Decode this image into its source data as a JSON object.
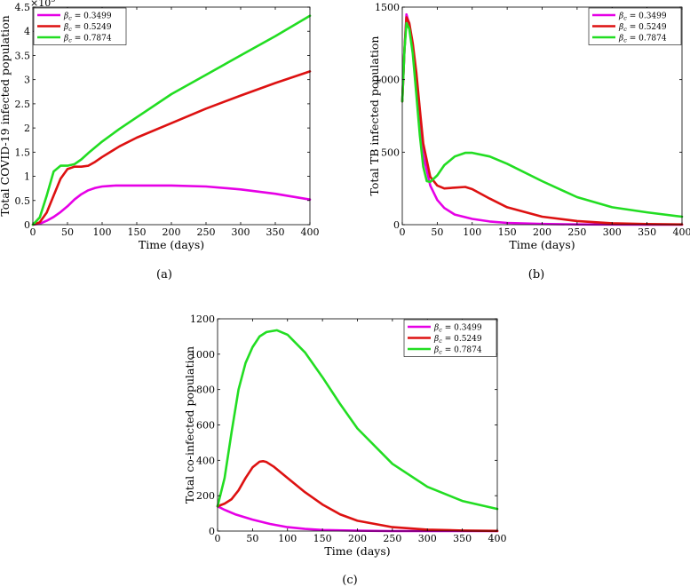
{
  "figure": {
    "captions": [
      "(a)",
      "(b)",
      "(c)"
    ]
  },
  "chart_data": [
    {
      "type": "line",
      "panel": "(a)",
      "xlabel": "Time (days)",
      "ylabel": "Total COVID-19 infected population",
      "xlim": [
        0,
        400
      ],
      "ylim": [
        0,
        4.5
      ],
      "y_multiplier": "×10⁵",
      "y_exponent_base": "×10",
      "y_exponent_power": "5",
      "xticks": [
        0,
        50,
        100,
        150,
        200,
        250,
        300,
        350,
        400
      ],
      "yticks": [
        0,
        0.5,
        1,
        1.5,
        2,
        2.5,
        3,
        3.5,
        4,
        4.5
      ],
      "ytick_labels": [
        "0",
        "0.5",
        "1",
        "1.5",
        "2",
        "2.5",
        "3",
        "3.5",
        "4",
        "4.5"
      ],
      "legend_position": "top-left",
      "series": [
        {
          "name": "βc = 0.3499",
          "beta_value": "0.3499",
          "color": "#e600e6",
          "x": [
            0,
            10,
            20,
            30,
            40,
            50,
            60,
            70,
            80,
            90,
            100,
            110,
            120,
            150,
            200,
            250,
            300,
            350,
            400
          ],
          "y": [
            0,
            0.02,
            0.08,
            0.16,
            0.26,
            0.38,
            0.52,
            0.63,
            0.71,
            0.76,
            0.79,
            0.8,
            0.81,
            0.81,
            0.81,
            0.79,
            0.73,
            0.64,
            0.52
          ]
        },
        {
          "name": "βc = 0.5249",
          "beta_value": "0.5249",
          "color": "#dd1111",
          "x": [
            0,
            10,
            20,
            30,
            40,
            50,
            60,
            70,
            80,
            90,
            100,
            125,
            150,
            200,
            250,
            300,
            350,
            400
          ],
          "y": [
            0,
            0.05,
            0.25,
            0.6,
            0.95,
            1.15,
            1.2,
            1.2,
            1.22,
            1.3,
            1.4,
            1.62,
            1.8,
            2.1,
            2.4,
            2.67,
            2.93,
            3.17
          ]
        },
        {
          "name": "βc = 0.7874",
          "beta_value": "0.7874",
          "color": "#22dd22",
          "x": [
            0,
            10,
            20,
            30,
            40,
            50,
            60,
            70,
            80,
            100,
            125,
            150,
            200,
            250,
            300,
            350,
            400
          ],
          "y": [
            0,
            0.15,
            0.6,
            1.1,
            1.22,
            1.22,
            1.25,
            1.35,
            1.48,
            1.72,
            1.98,
            2.22,
            2.7,
            3.1,
            3.5,
            3.9,
            4.32
          ]
        }
      ]
    },
    {
      "type": "line",
      "panel": "(b)",
      "xlabel": "Time (days)",
      "ylabel": "Total TB infected population",
      "xlim": [
        0,
        400
      ],
      "ylim": [
        0,
        1500
      ],
      "xticks": [
        0,
        50,
        100,
        150,
        200,
        250,
        300,
        350,
        400
      ],
      "yticks": [
        0,
        500,
        1000,
        1500
      ],
      "ytick_labels": [
        "0",
        "500",
        "1000",
        "1500"
      ],
      "legend_position": "top-right",
      "series": [
        {
          "name": "βc = 0.3499",
          "beta_value": "0.3499",
          "color": "#e600e6",
          "x": [
            0,
            3,
            6,
            10,
            15,
            20,
            25,
            30,
            40,
            50,
            60,
            75,
            100,
            125,
            150,
            200,
            250,
            300,
            350,
            400
          ],
          "y": [
            850,
            1200,
            1450,
            1380,
            1200,
            950,
            700,
            480,
            270,
            170,
            115,
            70,
            40,
            22,
            12,
            5,
            2,
            1,
            0,
            0
          ]
        },
        {
          "name": "βc = 0.5249",
          "beta_value": "0.5249",
          "color": "#dd1111",
          "x": [
            0,
            3,
            6,
            10,
            15,
            20,
            25,
            30,
            40,
            50,
            60,
            75,
            90,
            100,
            125,
            150,
            200,
            250,
            300,
            350,
            400
          ],
          "y": [
            850,
            1200,
            1430,
            1390,
            1250,
            1050,
            800,
            560,
            330,
            270,
            250,
            255,
            260,
            245,
            180,
            120,
            55,
            25,
            10,
            4,
            2
          ]
        },
        {
          "name": "βc = 0.7874",
          "beta_value": "0.7874",
          "color": "#22dd22",
          "x": [
            0,
            3,
            6,
            10,
            15,
            20,
            25,
            30,
            35,
            40,
            50,
            60,
            75,
            90,
            100,
            125,
            150,
            200,
            250,
            300,
            350,
            400
          ],
          "y": [
            850,
            1200,
            1390,
            1350,
            1180,
            900,
            620,
            400,
            300,
            295,
            340,
            410,
            470,
            495,
            495,
            470,
            420,
            300,
            190,
            120,
            85,
            55
          ]
        }
      ]
    },
    {
      "type": "line",
      "panel": "(c)",
      "xlabel": "Time (days)",
      "ylabel": "Total co-infected population",
      "xlim": [
        0,
        400
      ],
      "ylim": [
        0,
        1200
      ],
      "xticks": [
        0,
        50,
        100,
        150,
        200,
        250,
        300,
        350,
        400
      ],
      "yticks": [
        0,
        200,
        400,
        600,
        800,
        1000,
        1200
      ],
      "ytick_labels": [
        "0",
        "200",
        "400",
        "600",
        "800",
        "1000",
        "1200"
      ],
      "legend_position": "top-right",
      "series": [
        {
          "name": "βc = 0.3499",
          "beta_value": "0.3499",
          "color": "#e600e6",
          "x": [
            0,
            10,
            25,
            50,
            75,
            100,
            125,
            150,
            200,
            250,
            300,
            350,
            400
          ],
          "y": [
            140,
            120,
            95,
            65,
            40,
            22,
            12,
            6,
            2,
            0,
            0,
            0,
            0
          ]
        },
        {
          "name": "βc = 0.5249",
          "beta_value": "0.5249",
          "color": "#dd1111",
          "x": [
            0,
            10,
            20,
            30,
            40,
            50,
            60,
            65,
            70,
            80,
            100,
            125,
            150,
            175,
            200,
            250,
            300,
            350,
            400
          ],
          "y": [
            140,
            155,
            180,
            230,
            300,
            360,
            392,
            395,
            390,
            365,
            300,
            220,
            150,
            95,
            58,
            22,
            8,
            3,
            1
          ]
        },
        {
          "name": "βc = 0.7874",
          "beta_value": "0.7874",
          "color": "#22dd22",
          "x": [
            0,
            10,
            20,
            30,
            40,
            50,
            60,
            70,
            85,
            100,
            125,
            150,
            175,
            200,
            250,
            300,
            350,
            400
          ],
          "y": [
            140,
            300,
            560,
            800,
            950,
            1040,
            1100,
            1125,
            1135,
            1110,
            1010,
            870,
            720,
            580,
            380,
            250,
            170,
            125
          ]
        }
      ]
    }
  ]
}
